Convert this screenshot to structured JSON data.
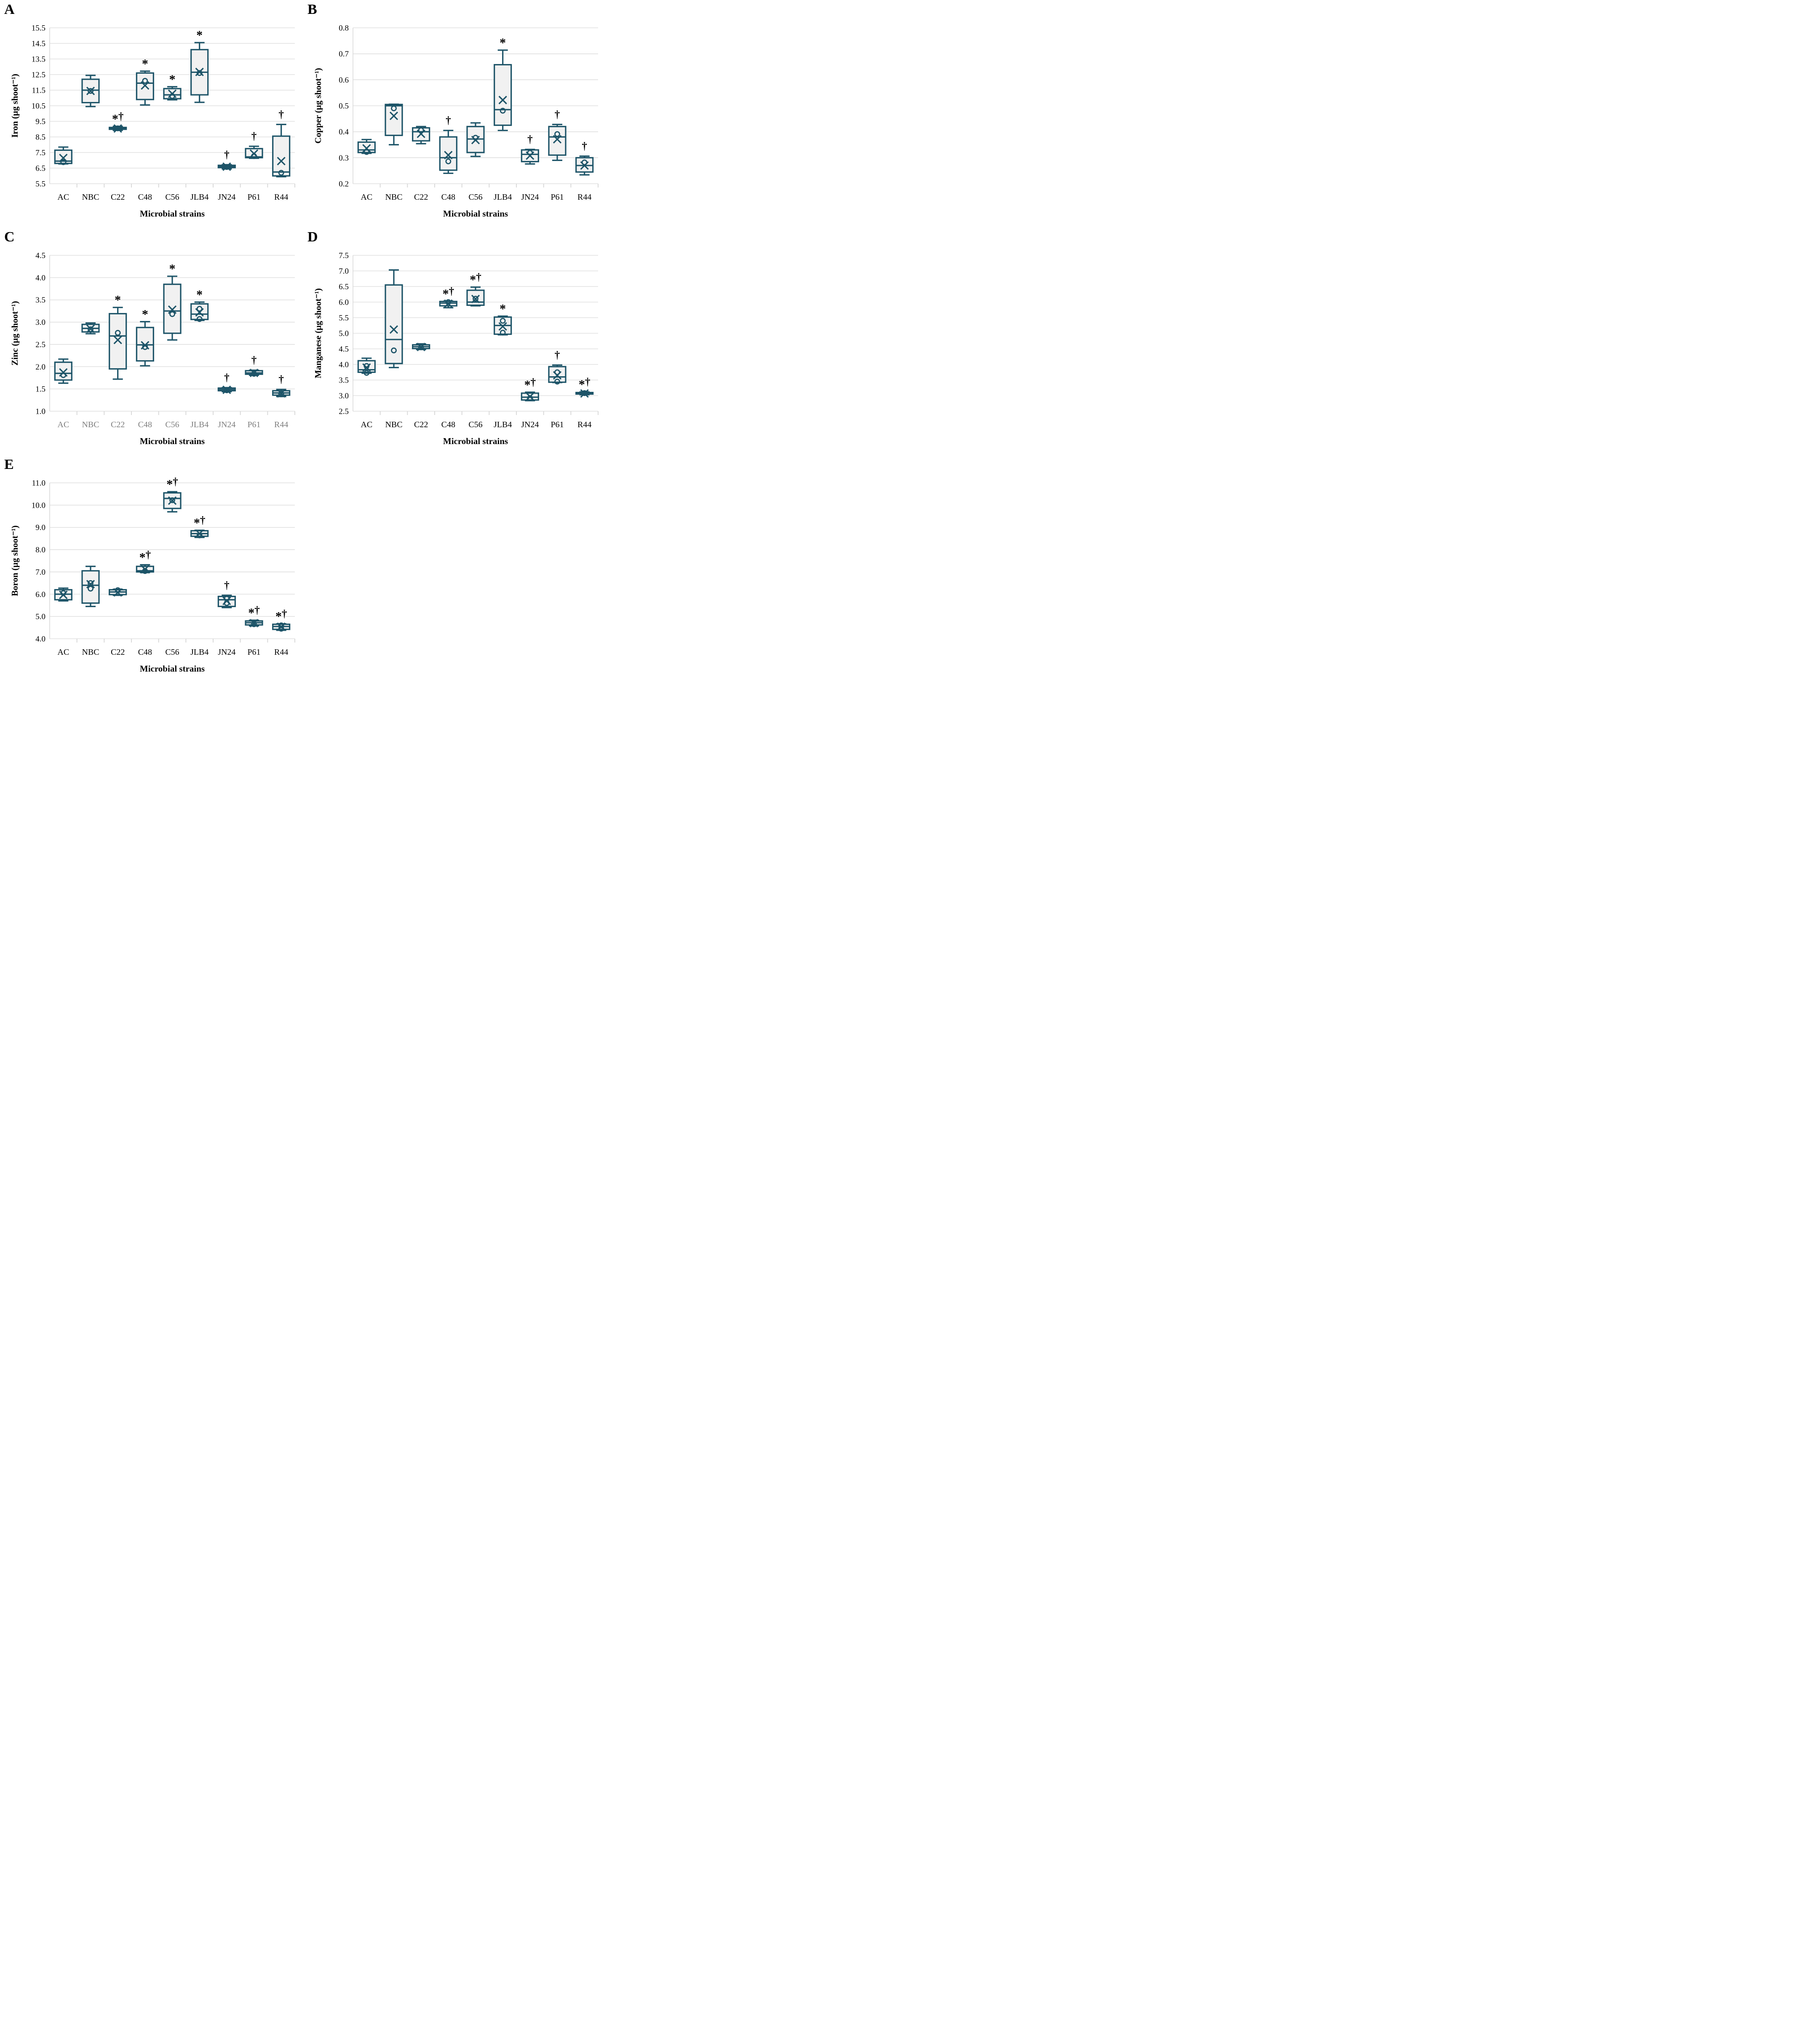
{
  "figure": {
    "background": "#ffffff",
    "colors": {
      "box_stroke": "#1D5468",
      "box_fill": "#F1F1F1",
      "grid": "#D9D9D9",
      "axis_text": "#000000",
      "muted_tick_text": "#7F7F7F",
      "annotation": "#000000"
    },
    "xlabel": "Microbial strains",
    "categories": [
      "AC",
      "NBC",
      "C22",
      "C48",
      "C56",
      "JLB4",
      "JN24",
      "P61",
      "R44"
    ]
  },
  "chart_data": [
    {
      "type": "boxplot",
      "label": "A",
      "ylabel": "Iron (µg shoot⁻¹)",
      "xlabel": "Microbial strains",
      "ymin": 5.5,
      "ymax": 15.5,
      "yticks": [
        "5.5",
        "6.5",
        "7.5",
        "8.5",
        "9.5",
        "10.5",
        "11.5",
        "12.5",
        "13.5",
        "14.5",
        "15.5"
      ],
      "x_tick_color": "#000000",
      "categories": [
        "AC",
        "NBC",
        "C22",
        "C48",
        "C56",
        "JLB4",
        "JN24",
        "P61",
        "R44"
      ],
      "boxes": [
        {
          "low": 6.77,
          "q1": 6.8,
          "med": 6.95,
          "q3": 7.65,
          "high": 7.85,
          "mean": 7.15,
          "outliers": [
            6.88
          ],
          "ann": ""
        },
        {
          "low": 10.45,
          "q1": 10.7,
          "med": 11.5,
          "q3": 12.2,
          "high": 12.45,
          "mean": 11.45,
          "outliers": [
            11.45
          ],
          "ann": ""
        },
        {
          "low": 8.92,
          "q1": 8.99,
          "med": 9.05,
          "q3": 9.11,
          "high": 9.18,
          "mean": 9.04,
          "outliers": [
            9.05
          ],
          "ann": "*†"
        },
        {
          "low": 10.55,
          "q1": 10.9,
          "med": 11.95,
          "q3": 12.6,
          "high": 12.72,
          "mean": 11.8,
          "outliers": [
            12.1
          ],
          "ann": "*"
        },
        {
          "low": 10.88,
          "q1": 10.95,
          "med": 11.2,
          "q3": 11.6,
          "high": 11.72,
          "mean": 11.27,
          "outliers": [
            11.12
          ],
          "ann": "*"
        },
        {
          "low": 10.72,
          "q1": 11.2,
          "med": 12.65,
          "q3": 14.1,
          "high": 14.55,
          "mean": 12.67,
          "outliers": [
            12.6
          ],
          "ann": "*"
        },
        {
          "low": 6.45,
          "q1": 6.53,
          "med": 6.6,
          "q3": 6.68,
          "high": 6.72,
          "mean": 6.59,
          "outliers": [
            6.57
          ],
          "ann": "†"
        },
        {
          "low": 7.13,
          "q1": 7.17,
          "med": 7.22,
          "q3": 7.75,
          "high": 7.9,
          "mean": 7.43,
          "outliers": [
            7.27
          ],
          "ann": "†"
        },
        {
          "low": 5.95,
          "q1": 6.0,
          "med": 6.25,
          "q3": 8.55,
          "high": 9.3,
          "mean": 6.95,
          "outliers": [
            6.2
          ],
          "ann": "†"
        }
      ]
    },
    {
      "type": "boxplot",
      "label": "B",
      "ylabel": "Copper (µg shoot⁻¹)",
      "xlabel": "Microbial strains",
      "ymin": 0.2,
      "ymax": 0.8,
      "yticks": [
        "0.2",
        "0.3",
        "0.4",
        "0.5",
        "0.6",
        "0.7",
        "0.8"
      ],
      "x_tick_color": "#000000",
      "categories": [
        "AC",
        "NBC",
        "C22",
        "C48",
        "C56",
        "JLB4",
        "JN24",
        "P61",
        "R44"
      ],
      "boxes": [
        {
          "low": 0.317,
          "q1": 0.32,
          "med": 0.33,
          "q3": 0.36,
          "high": 0.37,
          "mean": 0.336,
          "outliers": [
            0.322
          ],
          "ann": ""
        },
        {
          "low": 0.35,
          "q1": 0.386,
          "med": 0.5,
          "q3": 0.505,
          "high": 0.506,
          "mean": 0.461,
          "outliers": [
            0.49
          ],
          "ann": ""
        },
        {
          "low": 0.354,
          "q1": 0.365,
          "med": 0.4,
          "q3": 0.415,
          "high": 0.42,
          "mean": 0.392,
          "outliers": [
            0.406
          ],
          "ann": ""
        },
        {
          "low": 0.24,
          "q1": 0.252,
          "med": 0.3,
          "q3": 0.38,
          "high": 0.405,
          "mean": 0.31,
          "outliers": [
            0.286
          ],
          "ann": "†"
        },
        {
          "low": 0.305,
          "q1": 0.32,
          "med": 0.372,
          "q3": 0.42,
          "high": 0.434,
          "mean": 0.368,
          "outliers": [
            0.377
          ],
          "ann": ""
        },
        {
          "low": 0.405,
          "q1": 0.425,
          "med": 0.485,
          "q3": 0.658,
          "high": 0.714,
          "mean": 0.522,
          "outliers": [
            0.481
          ],
          "ann": "*"
        },
        {
          "low": 0.276,
          "q1": 0.285,
          "med": 0.313,
          "q3": 0.33,
          "high": 0.332,
          "mean": 0.308,
          "outliers": [
            0.319
          ],
          "ann": "†"
        },
        {
          "low": 0.29,
          "q1": 0.31,
          "med": 0.38,
          "q3": 0.42,
          "high": 0.428,
          "mean": 0.371,
          "outliers": [
            0.391
          ],
          "ann": "†"
        },
        {
          "low": 0.234,
          "q1": 0.245,
          "med": 0.27,
          "q3": 0.3,
          "high": 0.306,
          "mean": 0.27,
          "outliers": [
            0.282
          ],
          "ann": "†"
        }
      ]
    },
    {
      "type": "boxplot",
      "label": "C",
      "ylabel": "Zinc (µg shoot⁻¹)",
      "xlabel": "Microbial strains",
      "ymin": 1.0,
      "ymax": 4.5,
      "yticks": [
        "1.0",
        "1.5",
        "2.0",
        "2.5",
        "3.0",
        "3.5",
        "4.0",
        "4.5"
      ],
      "x_tick_color": "#7F7F7F",
      "categories": [
        "AC",
        "NBC",
        "C22",
        "C48",
        "C56",
        "JLB4",
        "JN24",
        "P61",
        "R44"
      ],
      "boxes": [
        {
          "low": 1.63,
          "q1": 1.7,
          "med": 1.85,
          "q3": 2.1,
          "high": 2.17,
          "mean": 1.87,
          "outliers": [
            1.81
          ],
          "ann": ""
        },
        {
          "low": 2.74,
          "q1": 2.78,
          "med": 2.86,
          "q3": 2.95,
          "high": 2.98,
          "mean": 2.85,
          "outliers": [
            2.84
          ],
          "ann": ""
        },
        {
          "low": 1.72,
          "q1": 1.95,
          "med": 2.69,
          "q3": 3.19,
          "high": 3.33,
          "mean": 2.6,
          "outliers": [
            2.76
          ],
          "ann": "*"
        },
        {
          "low": 2.02,
          "q1": 2.13,
          "med": 2.49,
          "q3": 2.88,
          "high": 3.01,
          "mean": 2.48,
          "outliers": [
            2.44
          ],
          "ann": "*"
        },
        {
          "low": 2.6,
          "q1": 2.75,
          "med": 3.25,
          "q3": 3.85,
          "high": 4.03,
          "mean": 3.28,
          "outliers": [
            3.18
          ],
          "ann": "*"
        },
        {
          "low": 3.04,
          "q1": 3.06,
          "med": 3.18,
          "q3": 3.41,
          "high": 3.45,
          "mean": 3.22,
          "outliers": [
            3.3,
            3.07
          ],
          "ann": "*"
        },
        {
          "low": 1.44,
          "q1": 1.46,
          "med": 1.49,
          "q3": 1.52,
          "high": 1.53,
          "mean": 1.48,
          "outliers": [
            1.47
          ],
          "ann": "†"
        },
        {
          "low": 1.81,
          "q1": 1.83,
          "med": 1.86,
          "q3": 1.91,
          "high": 1.92,
          "mean": 1.86,
          "outliers": [
            1.84
          ],
          "ann": "†"
        },
        {
          "low": 1.33,
          "q1": 1.36,
          "med": 1.41,
          "q3": 1.46,
          "high": 1.49,
          "mean": 1.4,
          "outliers": [
            1.38
          ],
          "ann": "†"
        }
      ]
    },
    {
      "type": "boxplot",
      "label": "D",
      "ylabel": "Manganese (µg shoot⁻¹)",
      "xlabel": "Microbial strains",
      "ymin": 2.5,
      "ymax": 7.5,
      "yticks": [
        "2.5",
        "3.0",
        "3.5",
        "4.0",
        "4.5",
        "5.0",
        "5.5",
        "6.0",
        "6.5",
        "7.0",
        "7.5"
      ],
      "x_tick_color": "#000000",
      "categories": [
        "AC",
        "NBC",
        "C22",
        "C48",
        "C56",
        "JLB4",
        "JN24",
        "P61",
        "R44"
      ],
      "boxes": [
        {
          "low": 3.72,
          "q1": 3.75,
          "med": 3.83,
          "q3": 4.12,
          "high": 4.2,
          "mean": 3.9,
          "outliers": [
            3.73,
            3.95
          ],
          "ann": ""
        },
        {
          "low": 3.9,
          "q1": 4.03,
          "med": 4.8,
          "q3": 6.55,
          "high": 7.03,
          "mean": 5.12,
          "outliers": [
            4.45
          ],
          "ann": ""
        },
        {
          "low": 4.48,
          "q1": 4.51,
          "med": 4.57,
          "q3": 4.63,
          "high": 4.66,
          "mean": 4.56,
          "outliers": [
            4.55
          ],
          "ann": ""
        },
        {
          "low": 5.82,
          "q1": 5.88,
          "med": 5.97,
          "q3": 6.02,
          "high": 6.03,
          "mean": 5.95,
          "outliers": [
            6.0
          ],
          "ann": "*†"
        },
        {
          "low": 5.88,
          "q1": 5.9,
          "med": 6.0,
          "q3": 6.38,
          "high": 6.48,
          "mean": 6.1,
          "outliers": [
            6.11
          ],
          "ann": "*†"
        },
        {
          "low": 4.95,
          "q1": 4.97,
          "med": 5.25,
          "q3": 5.52,
          "high": 5.55,
          "mean": 5.22,
          "outliers": [
            5.4,
            5.02
          ],
          "ann": "*"
        },
        {
          "low": 2.84,
          "q1": 2.86,
          "med": 2.95,
          "q3": 3.08,
          "high": 3.11,
          "mean": 2.97,
          "outliers": [
            2.92
          ],
          "ann": "*†"
        },
        {
          "low": 3.42,
          "q1": 3.43,
          "med": 3.6,
          "q3": 3.93,
          "high": 3.98,
          "mean": 3.65,
          "outliers": [
            3.75,
            3.45
          ],
          "ann": "†"
        },
        {
          "low": 3.03,
          "q1": 3.05,
          "med": 3.08,
          "q3": 3.1,
          "high": 3.12,
          "mean": 3.07,
          "outliers": [
            3.08
          ],
          "ann": "*†"
        }
      ]
    },
    {
      "type": "boxplot",
      "label": "E",
      "ylabel": "Boron (µg shoot⁻¹)",
      "xlabel": "Microbial strains",
      "ymin": 4.0,
      "ymax": 11.0,
      "yticks": [
        "4.0",
        "5.0",
        "6.0",
        "7.0",
        "8.0",
        "9.0",
        "10.0",
        "11.0"
      ],
      "x_tick_color": "#000000",
      "categories": [
        "AC",
        "NBC",
        "C22",
        "C48",
        "C56",
        "JLB4",
        "JN24",
        "P61",
        "R44"
      ],
      "boxes": [
        {
          "low": 5.7,
          "q1": 5.75,
          "med": 6.0,
          "q3": 6.2,
          "high": 6.27,
          "mean": 5.97,
          "outliers": [
            6.05
          ],
          "ann": ""
        },
        {
          "low": 5.45,
          "q1": 5.6,
          "med": 6.4,
          "q3": 7.05,
          "high": 7.25,
          "mean": 6.45,
          "outliers": [
            6.5,
            6.25
          ],
          "ann": ""
        },
        {
          "low": 5.95,
          "q1": 5.98,
          "med": 6.1,
          "q3": 6.2,
          "high": 6.22,
          "mean": 6.08,
          "outliers": [
            6.18
          ],
          "ann": ""
        },
        {
          "low": 6.97,
          "q1": 7.0,
          "med": 7.05,
          "q3": 7.25,
          "high": 7.32,
          "mean": 7.12,
          "outliers": [
            7.04
          ],
          "ann": "*†"
        },
        {
          "low": 9.7,
          "q1": 9.85,
          "med": 10.3,
          "q3": 10.55,
          "high": 10.6,
          "mean": 10.2,
          "outliers": [
            10.22
          ],
          "ann": "*†"
        },
        {
          "low": 8.55,
          "q1": 8.6,
          "med": 8.72,
          "q3": 8.85,
          "high": 8.87,
          "mean": 8.72,
          "outliers": [
            8.64
          ],
          "ann": "*†"
        },
        {
          "low": 5.4,
          "q1": 5.45,
          "med": 5.75,
          "q3": 5.9,
          "high": 5.95,
          "mean": 5.7,
          "outliers": [
            5.8,
            5.6
          ],
          "ann": "†"
        },
        {
          "low": 4.58,
          "q1": 4.62,
          "med": 4.72,
          "q3": 4.8,
          "high": 4.83,
          "mean": 4.7,
          "outliers": [
            4.65
          ],
          "ann": "*†"
        },
        {
          "low": 4.38,
          "q1": 4.42,
          "med": 4.55,
          "q3": 4.65,
          "high": 4.67,
          "mean": 4.54,
          "outliers": [
            4.6,
            4.45
          ],
          "ann": "*†"
        }
      ]
    }
  ]
}
